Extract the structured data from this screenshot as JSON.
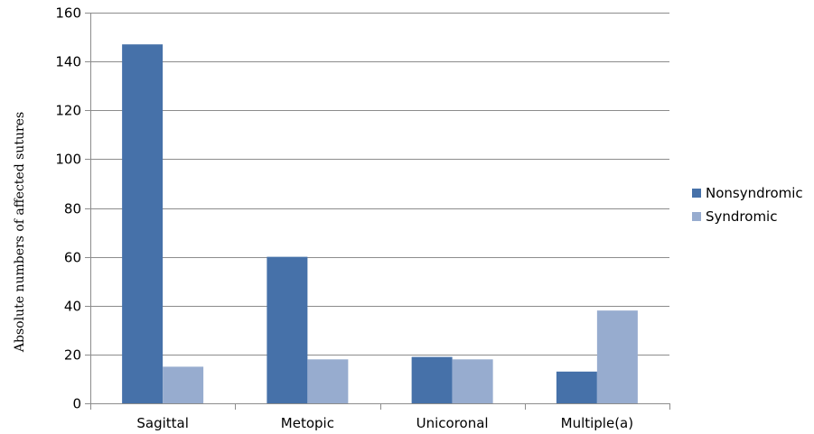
{
  "chart_data": {
    "type": "bar",
    "categories": [
      "Sagittal",
      "Metopic",
      "Unicoronal",
      "Multiple(a)"
    ],
    "series": [
      {
        "name": "Nonsyndromic",
        "values": [
          147,
          60,
          19,
          13
        ],
        "color": "#4671a9"
      },
      {
        "name": "Syndromic",
        "values": [
          15,
          18,
          18,
          38
        ],
        "color": "#97accf"
      }
    ],
    "ylabel": "Absolute numbers of affected sutures",
    "xlabel": "",
    "title": "",
    "ylim": [
      0,
      160
    ],
    "yticks": [
      0,
      20,
      40,
      60,
      80,
      100,
      120,
      140,
      160
    ],
    "grid": true,
    "legend_position": "right"
  }
}
